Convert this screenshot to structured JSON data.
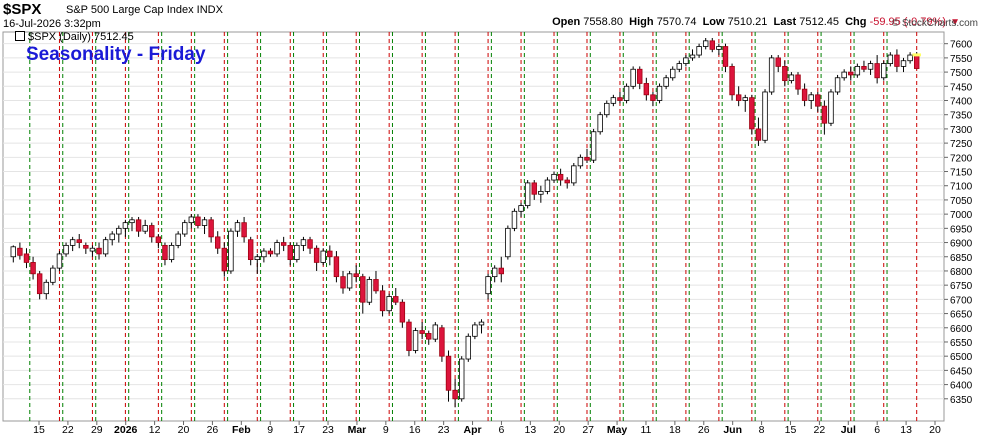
{
  "header": {
    "symbol": "$SPX",
    "name": "S&P 500 Large Cap Index INDX",
    "date": "16-Jul-2026 3:32pm",
    "brand": "© StockCharts.com",
    "open_label": "Open",
    "open": "7558.80",
    "high_label": "High",
    "high": "7570.74",
    "low_label": "Low",
    "low": "7510.21",
    "last_label": "Last",
    "last": "7512.45",
    "chg_label": "Chg",
    "chg": "-59.95 (-0.79%)"
  },
  "legend": "$SPX (Daily) 7512.45",
  "chart_data": {
    "type": "candlestick",
    "title": "Seasonality - Friday",
    "ylim": [
      6300,
      7620
    ],
    "yticks": [
      6350,
      6400,
      6450,
      6500,
      6550,
      6600,
      6650,
      6700,
      6750,
      6800,
      6850,
      6900,
      6950,
      7000,
      7050,
      7100,
      7150,
      7200,
      7250,
      7300,
      7350,
      7400,
      7450,
      7500,
      7550,
      7600
    ],
    "xtick_labels": [
      "15",
      "22",
      "29",
      "2026",
      "12",
      "20",
      "26",
      "Feb",
      "9",
      "17",
      "23",
      "Mar",
      "9",
      "16",
      "23",
      "Apr",
      "6",
      "13",
      "20",
      "27",
      "May",
      "11",
      "18",
      "26",
      "Jun",
      "8",
      "15",
      "22",
      "Jul",
      "6",
      "13",
      "20"
    ],
    "vertical_markers": "green dashed = week start, red dashed = Friday",
    "ohlc": [
      [
        6850,
        6890,
        6830,
        6885
      ],
      [
        6880,
        6900,
        6840,
        6855
      ],
      [
        6860,
        6880,
        6810,
        6830
      ],
      [
        6830,
        6850,
        6770,
        6790
      ],
      [
        6790,
        6800,
        6700,
        6720
      ],
      [
        6720,
        6770,
        6700,
        6760
      ],
      [
        6760,
        6820,
        6750,
        6810
      ],
      [
        6810,
        6870,
        6800,
        6860
      ],
      [
        6860,
        6900,
        6850,
        6890
      ],
      [
        6890,
        6920,
        6870,
        6910
      ],
      [
        6910,
        6930,
        6880,
        6900
      ],
      [
        6890,
        6900,
        6860,
        6880
      ],
      [
        6870,
        6890,
        6850,
        6880
      ],
      [
        6880,
        6900,
        6840,
        6860
      ],
      [
        6860,
        6920,
        6850,
        6910
      ],
      [
        6910,
        6940,
        6890,
        6930
      ],
      [
        6930,
        6960,
        6900,
        6950
      ],
      [
        6950,
        6980,
        6920,
        6970
      ],
      [
        6970,
        6990,
        6940,
        6980
      ],
      [
        6980,
        6990,
        6920,
        6940
      ],
      [
        6940,
        6980,
        6930,
        6960
      ],
      [
        6960,
        6970,
        6900,
        6920
      ],
      [
        6920,
        6930,
        6880,
        6900
      ],
      [
        6890,
        6900,
        6820,
        6840
      ],
      [
        6840,
        6900,
        6830,
        6890
      ],
      [
        6890,
        6940,
        6880,
        6930
      ],
      [
        6930,
        6980,
        6920,
        6970
      ],
      [
        6970,
        7000,
        6950,
        6990
      ],
      [
        6990,
        7000,
        6950,
        6960
      ],
      [
        6960,
        6990,
        6930,
        6980
      ],
      [
        6980,
        6990,
        6900,
        6920
      ],
      [
        6920,
        6940,
        6860,
        6880
      ],
      [
        6880,
        6900,
        6780,
        6800
      ],
      [
        6800,
        6950,
        6790,
        6940
      ],
      [
        6940,
        6980,
        6920,
        6970
      ],
      [
        6970,
        6990,
        6900,
        6920
      ],
      [
        6910,
        6920,
        6820,
        6840
      ],
      [
        6840,
        6860,
        6790,
        6850
      ],
      [
        6850,
        6880,
        6830,
        6870
      ],
      [
        6870,
        6880,
        6850,
        6860
      ],
      [
        6860,
        6910,
        6850,
        6900
      ],
      [
        6900,
        6920,
        6870,
        6890
      ],
      [
        6890,
        6900,
        6820,
        6840
      ],
      [
        6840,
        6900,
        6830,
        6890
      ],
      [
        6890,
        6920,
        6870,
        6910
      ],
      [
        6910,
        6920,
        6860,
        6880
      ],
      [
        6880,
        6890,
        6800,
        6830
      ],
      [
        6830,
        6880,
        6820,
        6870
      ],
      [
        6870,
        6890,
        6820,
        6850
      ],
      [
        6850,
        6870,
        6760,
        6780
      ],
      [
        6780,
        6800,
        6720,
        6740
      ],
      [
        6740,
        6800,
        6730,
        6790
      ],
      [
        6790,
        6820,
        6760,
        6780
      ],
      [
        6780,
        6790,
        6650,
        6690
      ],
      [
        6690,
        6780,
        6680,
        6770
      ],
      [
        6770,
        6800,
        6720,
        6730
      ],
      [
        6730,
        6750,
        6640,
        6660
      ],
      [
        6660,
        6720,
        6650,
        6710
      ],
      [
        6710,
        6740,
        6680,
        6690
      ],
      [
        6690,
        6700,
        6600,
        6620
      ],
      [
        6620,
        6630,
        6500,
        6520
      ],
      [
        6520,
        6600,
        6510,
        6590
      ],
      [
        6590,
        6620,
        6560,
        6580
      ],
      [
        6580,
        6590,
        6540,
        6560
      ],
      [
        6560,
        6620,
        6550,
        6610
      ],
      [
        6600,
        6610,
        6480,
        6500
      ],
      [
        6500,
        6520,
        6340,
        6380
      ],
      [
        6380,
        6420,
        6320,
        6350
      ],
      [
        6350,
        6500,
        6340,
        6490
      ],
      [
        6490,
        6580,
        6480,
        6570
      ],
      [
        6570,
        6620,
        6560,
        6610
      ],
      [
        6610,
        6630,
        6580,
        6620
      ],
      [
        6720,
        6790,
        6700,
        6780
      ],
      [
        6780,
        6820,
        6760,
        6810
      ],
      [
        6810,
        6850,
        6760,
        6790
      ],
      [
        6850,
        6960,
        6840,
        6950
      ],
      [
        6950,
        7020,
        6940,
        7010
      ],
      [
        7010,
        7040,
        6990,
        7030
      ],
      [
        7030,
        7120,
        7020,
        7110
      ],
      [
        7110,
        7120,
        7050,
        7070
      ],
      [
        7070,
        7100,
        7040,
        7080
      ],
      [
        7080,
        7130,
        7070,
        7120
      ],
      [
        7120,
        7150,
        7110,
        7140
      ],
      [
        7140,
        7160,
        7100,
        7120
      ],
      [
        7120,
        7130,
        7090,
        7110
      ],
      [
        7110,
        7180,
        7100,
        7170
      ],
      [
        7170,
        7210,
        7160,
        7200
      ],
      [
        7200,
        7230,
        7180,
        7190
      ],
      [
        7190,
        7300,
        7180,
        7290
      ],
      [
        7290,
        7360,
        7280,
        7350
      ],
      [
        7350,
        7400,
        7340,
        7390
      ],
      [
        7390,
        7420,
        7380,
        7410
      ],
      [
        7410,
        7430,
        7390,
        7400
      ],
      [
        7400,
        7460,
        7390,
        7450
      ],
      [
        7450,
        7520,
        7440,
        7510
      ],
      [
        7510,
        7520,
        7440,
        7460
      ],
      [
        7460,
        7480,
        7400,
        7420
      ],
      [
        7420,
        7430,
        7380,
        7400
      ],
      [
        7400,
        7460,
        7390,
        7450
      ],
      [
        7450,
        7490,
        7440,
        7480
      ],
      [
        7480,
        7520,
        7470,
        7510
      ],
      [
        7510,
        7540,
        7500,
        7530
      ],
      [
        7530,
        7560,
        7520,
        7550
      ],
      [
        7550,
        7580,
        7540,
        7560
      ],
      [
        7560,
        7600,
        7550,
        7590
      ],
      [
        7590,
        7620,
        7580,
        7610
      ],
      [
        7610,
        7620,
        7570,
        7580
      ],
      [
        7580,
        7600,
        7560,
        7590
      ],
      [
        7590,
        7600,
        7500,
        7520
      ],
      [
        7520,
        7530,
        7400,
        7420
      ],
      [
        7420,
        7450,
        7380,
        7400
      ],
      [
        7400,
        7420,
        7360,
        7410
      ],
      [
        7410,
        7420,
        7280,
        7300
      ],
      [
        7300,
        7340,
        7240,
        7260
      ],
      [
        7260,
        7440,
        7250,
        7430
      ],
      [
        7430,
        7560,
        7420,
        7550
      ],
      [
        7550,
        7560,
        7500,
        7520
      ],
      [
        7520,
        7540,
        7450,
        7470
      ],
      [
        7470,
        7500,
        7460,
        7490
      ],
      [
        7490,
        7500,
        7420,
        7440
      ],
      [
        7440,
        7460,
        7380,
        7400
      ],
      [
        7400,
        7430,
        7370,
        7420
      ],
      [
        7420,
        7430,
        7360,
        7380
      ],
      [
        7380,
        7400,
        7280,
        7320
      ],
      [
        7320,
        7440,
        7310,
        7430
      ],
      [
        7430,
        7490,
        7420,
        7480
      ],
      [
        7480,
        7510,
        7470,
        7500
      ],
      [
        7500,
        7520,
        7470,
        7490
      ],
      [
        7490,
        7530,
        7480,
        7520
      ],
      [
        7520,
        7540,
        7500,
        7510
      ],
      [
        7510,
        7540,
        7490,
        7530
      ],
      [
        7530,
        7560,
        7460,
        7480
      ],
      [
        7480,
        7540,
        7470,
        7530
      ],
      [
        7530,
        7570,
        7520,
        7560
      ],
      [
        7560,
        7580,
        7500,
        7520
      ],
      [
        7520,
        7550,
        7500,
        7540
      ],
      [
        7540,
        7570,
        7530,
        7560
      ],
      [
        7558.8,
        7570.74,
        7510.21,
        7512.45
      ]
    ]
  },
  "colors": {
    "up_fill": "#ffffff",
    "down_fill": "#dc143c",
    "doji_fill": "#000000",
    "friday_line": "#cc0000",
    "monday_line": "#008000",
    "title": "#1a1ad6",
    "highlight": "#ffff66"
  }
}
